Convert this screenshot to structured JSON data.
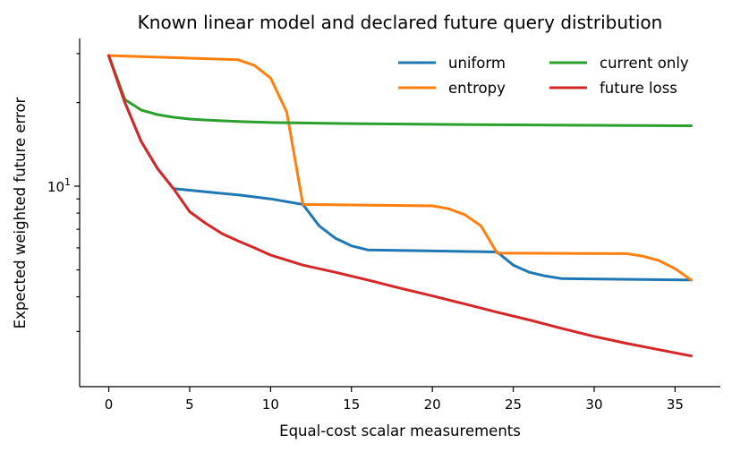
{
  "chart_data": {
    "type": "line",
    "title": "Known linear model and declared future query distribution",
    "xlabel": "Equal-cost scalar measurements",
    "ylabel": "Expected weighted future error",
    "xlim": [
      -1.8,
      37.8
    ],
    "ylim": [
      1.9,
      34.0
    ],
    "yscale": "log",
    "xticks": [
      0,
      5,
      10,
      15,
      20,
      25,
      30,
      35
    ],
    "xtick_labels": [
      "0",
      "5",
      "10",
      "15",
      "20",
      "25",
      "30",
      "35"
    ],
    "yticks_major": [
      10
    ],
    "ytick_major_labels": [
      "10¹"
    ],
    "yticks_minor": [
      3,
      4,
      5,
      6,
      7,
      8,
      9,
      20,
      30
    ],
    "grid": false,
    "legend": {
      "placement": "top-right",
      "columns": 2
    },
    "series": [
      {
        "name": "uniform",
        "color": "#1f77b4",
        "x": [
          0,
          1,
          2,
          3,
          4,
          8,
          10,
          11,
          12,
          13,
          14,
          15,
          16,
          24,
          25,
          26,
          27,
          28,
          36
        ],
        "y": [
          29.5,
          20.0,
          14.5,
          11.6,
          9.8,
          9.3,
          9.0,
          8.8,
          8.6,
          7.2,
          6.5,
          6.1,
          5.9,
          5.8,
          5.2,
          4.9,
          4.75,
          4.65,
          4.6
        ]
      },
      {
        "name": "entropy",
        "color": "#ff7f0e",
        "x": [
          0,
          8,
          9,
          10,
          11,
          12,
          20,
          21,
          22,
          23,
          24,
          32,
          33,
          34,
          35,
          36
        ],
        "y": [
          29.5,
          28.5,
          27.2,
          24.5,
          18.5,
          8.6,
          8.5,
          8.3,
          7.9,
          7.2,
          5.75,
          5.72,
          5.6,
          5.4,
          5.05,
          4.6
        ]
      },
      {
        "name": "current only",
        "color": "#2ca02c",
        "x": [
          0,
          1,
          2,
          3,
          4,
          5,
          6,
          8,
          10,
          15,
          20,
          25,
          30,
          36
        ],
        "y": [
          29.5,
          20.5,
          18.8,
          18.1,
          17.7,
          17.45,
          17.3,
          17.1,
          16.95,
          16.8,
          16.7,
          16.62,
          16.56,
          16.5
        ]
      },
      {
        "name": "future loss",
        "color": "#d62728",
        "x": [
          0,
          1,
          2,
          3,
          4,
          5,
          6,
          7,
          8,
          9,
          10,
          11,
          12,
          14,
          16,
          18,
          20,
          22,
          24,
          26,
          28,
          30,
          32,
          34,
          36
        ],
        "y": [
          29.5,
          20.0,
          14.5,
          11.6,
          9.8,
          8.1,
          7.35,
          6.75,
          6.35,
          6.0,
          5.65,
          5.42,
          5.2,
          4.9,
          4.6,
          4.3,
          4.03,
          3.77,
          3.52,
          3.3,
          3.08,
          2.88,
          2.72,
          2.58,
          2.45
        ]
      }
    ]
  }
}
